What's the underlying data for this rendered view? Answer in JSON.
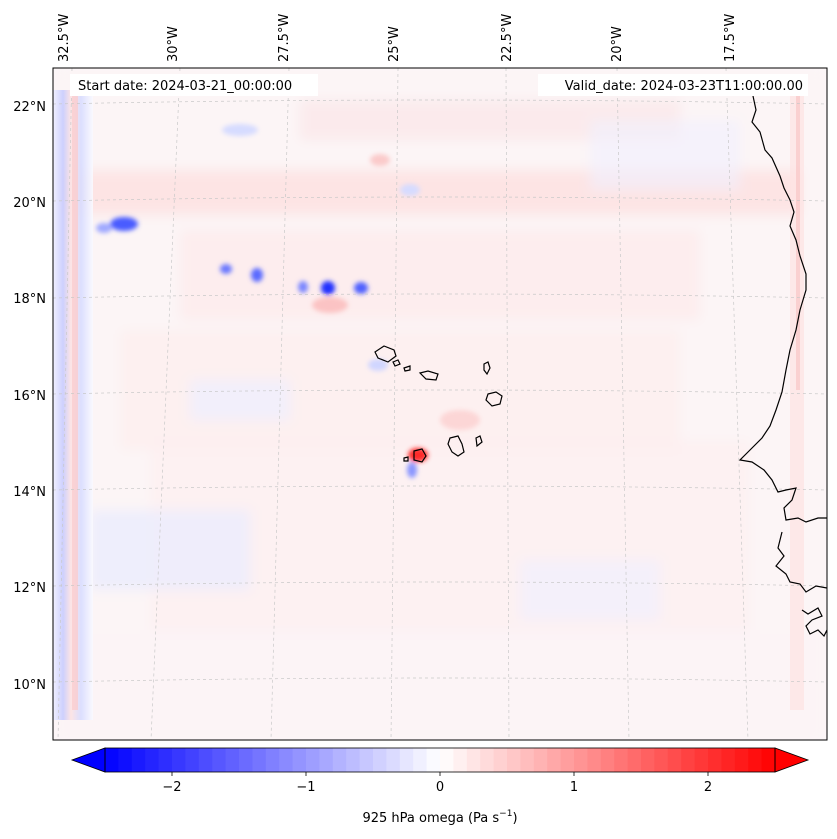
{
  "map": {
    "start_date": "Start date: 2024-03-21_00:00:00",
    "valid_date": "Valid_date: 2024-03-23T11:00:00.00",
    "lon_labels": [
      "32.5°W",
      "30°W",
      "27.5°W",
      "25°W",
      "22.5°W",
      "20°W",
      "17.5°W"
    ],
    "lat_labels": [
      "22°N",
      "20°N",
      "18°N",
      "16°N",
      "14°N",
      "12°N",
      "10°N"
    ],
    "field_variable": "925 hPa omega"
  },
  "colorbar": {
    "label_text": "925 hPa omega (Pa s",
    "label_exponent": "−1",
    "label_close": ")",
    "ticks": [
      "−2",
      "−1",
      "0",
      "1",
      "2"
    ],
    "vmin": -2.5,
    "vmax": 2.5,
    "colors": {
      "negative": "#0000ff",
      "zero": "#ffffff",
      "positive": "#ff0000"
    }
  }
}
